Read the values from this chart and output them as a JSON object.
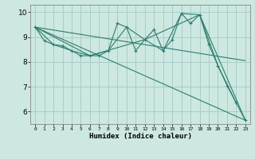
{
  "xlabel": "Humidex (Indice chaleur)",
  "ylabel": "",
  "bg_color": "#cce8e0",
  "grid_color": "#aacccc",
  "line_color": "#2d7d6e",
  "xlim": [
    -0.5,
    23.5
  ],
  "ylim": [
    5.5,
    10.3
  ],
  "xtick_labels": [
    "0",
    "1",
    "2",
    "3",
    "4",
    "5",
    "6",
    "7",
    "8",
    "9",
    "10",
    "11",
    "12",
    "13",
    "14",
    "15",
    "16",
    "17",
    "18",
    "19",
    "20",
    "21",
    "22",
    "23"
  ],
  "yticks": [
    6,
    7,
    8,
    9,
    10
  ],
  "lines": [
    {
      "x": [
        0,
        1,
        2,
        3,
        4,
        5,
        6,
        7,
        8,
        9,
        10,
        11,
        12,
        13,
        14,
        15,
        16,
        17,
        18,
        19,
        20,
        21,
        22,
        23
      ],
      "y": [
        9.4,
        8.85,
        8.7,
        8.65,
        8.45,
        8.25,
        8.25,
        8.25,
        8.45,
        9.55,
        9.4,
        8.45,
        8.9,
        9.3,
        8.45,
        8.9,
        9.95,
        9.55,
        9.9,
        8.7,
        7.85,
        7.05,
        6.35,
        5.65
      ],
      "marker": "+"
    },
    {
      "x": [
        0,
        2,
        4,
        6,
        8,
        10,
        12,
        14,
        16,
        18,
        20,
        22
      ],
      "y": [
        9.4,
        8.7,
        8.45,
        8.25,
        8.45,
        9.4,
        8.9,
        8.45,
        9.95,
        9.9,
        7.85,
        6.35
      ],
      "marker": null
    },
    {
      "x": [
        0,
        6,
        12,
        18,
        23
      ],
      "y": [
        9.4,
        8.25,
        8.9,
        9.9,
        5.65
      ],
      "marker": null
    },
    {
      "x": [
        0,
        23
      ],
      "y": [
        9.4,
        8.05
      ],
      "marker": null
    },
    {
      "x": [
        0,
        23
      ],
      "y": [
        9.4,
        5.65
      ],
      "marker": null
    }
  ]
}
